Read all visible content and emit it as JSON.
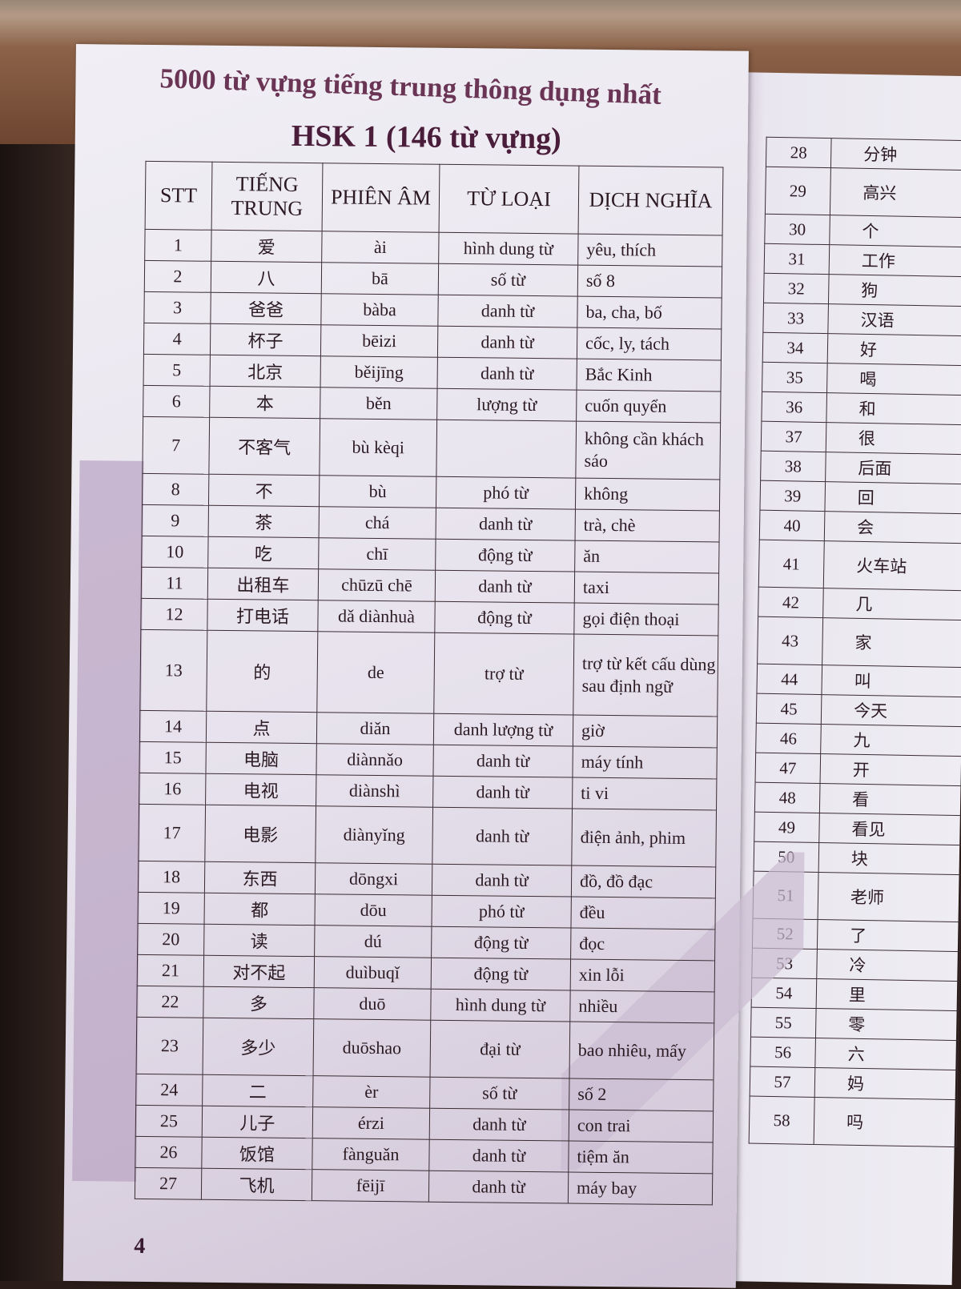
{
  "book_header": "5000 từ vựng tiếng trung thông dụng nhất",
  "section_title": "HSK 1 (146 từ vựng)",
  "page_number": "4",
  "table": {
    "headers": [
      "STT",
      "TIẾNG TRUNG",
      "PHIÊN ÂM",
      "TỪ LOẠI",
      "DỊCH NGHĨA"
    ],
    "rows": [
      [
        "1",
        "爱",
        "ài",
        "hình dung từ",
        "yêu, thích"
      ],
      [
        "2",
        "八",
        "bā",
        "số từ",
        "số 8"
      ],
      [
        "3",
        "爸爸",
        "bàba",
        "danh từ",
        "ba, cha, bố"
      ],
      [
        "4",
        "杯子",
        "bēizi",
        "danh từ",
        "cốc, ly, tách"
      ],
      [
        "5",
        "北京",
        "běijīng",
        "danh từ",
        "Bắc Kinh"
      ],
      [
        "6",
        "本",
        "běn",
        "lượng từ",
        "cuốn quyển"
      ],
      [
        "7",
        "不客气",
        "bù kèqi",
        "",
        "không cần khách sáo"
      ],
      [
        "8",
        "不",
        "bù",
        "phó từ",
        "không"
      ],
      [
        "9",
        "茶",
        "chá",
        "danh từ",
        "trà, chè"
      ],
      [
        "10",
        "吃",
        "chī",
        "động từ",
        "ăn"
      ],
      [
        "11",
        "出租车",
        "chūzū chē",
        "danh từ",
        "taxi"
      ],
      [
        "12",
        "打电话",
        "dǎ diànhuà",
        "động từ",
        "gọi điện thoại"
      ],
      [
        "13",
        "的",
        "de",
        "trợ từ",
        "trợ từ kết cấu dùng sau định ngữ"
      ],
      [
        "14",
        "点",
        "diǎn",
        "danh lượng từ",
        "giờ"
      ],
      [
        "15",
        "电脑",
        "diànnǎo",
        "danh từ",
        "máy tính"
      ],
      [
        "16",
        "电视",
        "diànshì",
        "danh từ",
        "ti vi"
      ],
      [
        "17",
        "电影",
        "diànyǐng",
        "danh từ",
        "điện ảnh, phim"
      ],
      [
        "18",
        "东西",
        "dōngxi",
        "danh từ",
        "đồ, đồ đạc"
      ],
      [
        "19",
        "都",
        "dōu",
        "phó từ",
        "đều"
      ],
      [
        "20",
        "读",
        "dú",
        "động từ",
        "đọc"
      ],
      [
        "21",
        "对不起",
        "duìbuqǐ",
        "động từ",
        "xin lỗi"
      ],
      [
        "22",
        "多",
        "duō",
        "hình dung từ",
        "nhiều"
      ],
      [
        "23",
        "多少",
        "duōshao",
        "đại từ",
        "bao nhiêu, mấy"
      ],
      [
        "24",
        "二",
        "èr",
        "số từ",
        "số 2"
      ],
      [
        "25",
        "儿子",
        "érzi",
        "danh từ",
        "con trai"
      ],
      [
        "26",
        "饭馆",
        "fànguǎn",
        "danh từ",
        "tiệm ăn"
      ],
      [
        "27",
        "飞机",
        "fēijī",
        "danh từ",
        "máy bay"
      ]
    ]
  },
  "right_page_table": {
    "rows": [
      [
        "28",
        "分钟"
      ],
      [
        "29",
        "高兴"
      ],
      [
        "30",
        "个"
      ],
      [
        "31",
        "工作"
      ],
      [
        "32",
        "狗"
      ],
      [
        "33",
        "汉语"
      ],
      [
        "34",
        "好"
      ],
      [
        "35",
        "喝"
      ],
      [
        "36",
        "和"
      ],
      [
        "37",
        "很"
      ],
      [
        "38",
        "后面"
      ],
      [
        "39",
        "回"
      ],
      [
        "40",
        "会"
      ],
      [
        "41",
        "火车站"
      ],
      [
        "42",
        "几"
      ],
      [
        "43",
        "家"
      ],
      [
        "44",
        "叫"
      ],
      [
        "45",
        "今天"
      ],
      [
        "46",
        "九"
      ],
      [
        "47",
        "开"
      ],
      [
        "48",
        "看"
      ],
      [
        "49",
        "看见"
      ],
      [
        "50",
        "块"
      ],
      [
        "51",
        "老师"
      ],
      [
        "52",
        "了"
      ],
      [
        "53",
        "冷"
      ],
      [
        "54",
        "里"
      ],
      [
        "55",
        "零"
      ],
      [
        "56",
        "六"
      ],
      [
        "57",
        "妈"
      ],
      [
        "58",
        "吗"
      ]
    ]
  }
}
